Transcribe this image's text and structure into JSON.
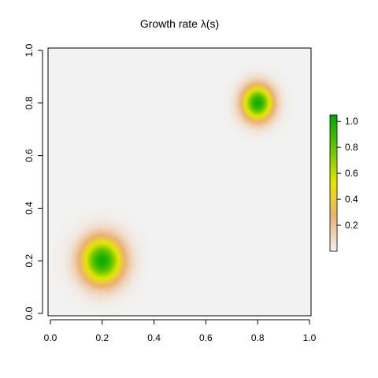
{
  "chart_data": {
    "type": "heatmap",
    "title": "Growth rate λ(s)",
    "xlabel": "",
    "ylabel": "",
    "xlim": [
      0,
      1
    ],
    "ylim": [
      0,
      1
    ],
    "x_ticks": [
      "0.0",
      "0.2",
      "0.4",
      "0.6",
      "0.8",
      "1.0"
    ],
    "y_ticks": [
      "0.0",
      "0.2",
      "0.4",
      "0.6",
      "0.8",
      "1.0"
    ],
    "peaks": [
      {
        "x": 0.2,
        "y": 0.2,
        "peak_value": 1.0,
        "sd_x": 0.055,
        "sd_y": 0.06
      },
      {
        "x": 0.8,
        "y": 0.8,
        "peak_value": 1.0,
        "sd_x": 0.04,
        "sd_y": 0.045
      }
    ],
    "colorbar": {
      "ticks": [
        "0.2",
        "0.4",
        "0.6",
        "0.8",
        "1.0"
      ],
      "tick_values": [
        0.2,
        0.4,
        0.6,
        0.8,
        1.0
      ],
      "range": [
        0,
        1.05
      ],
      "colors": [
        "#f2f2f2",
        "#ecb176",
        "#e6e600",
        "#63c600",
        "#00a600"
      ]
    },
    "grid": false,
    "legend_position": "right"
  }
}
